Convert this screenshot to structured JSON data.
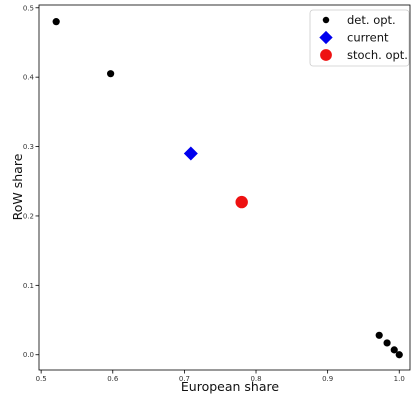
{
  "chart_data": {
    "type": "scatter",
    "xlabel": "European share",
    "ylabel": "RoW share",
    "xlim": [
      0.497,
      1.015
    ],
    "ylim": [
      -0.022,
      0.504
    ],
    "xticks": [
      {
        "value": 0.5,
        "label": "0.5"
      },
      {
        "value": 0.6,
        "label": "0.6"
      },
      {
        "value": 0.7,
        "label": "0.7"
      },
      {
        "value": 0.8,
        "label": "0.8"
      },
      {
        "value": 0.9,
        "label": "0.9"
      },
      {
        "value": 1.0,
        "label": "1.0"
      }
    ],
    "yticks": [
      {
        "value": 0.0,
        "label": "0.0"
      },
      {
        "value": 0.1,
        "label": "0.1"
      },
      {
        "value": 0.2,
        "label": "0.2"
      },
      {
        "value": 0.3,
        "label": "0.3"
      },
      {
        "value": 0.4,
        "label": "0.4"
      },
      {
        "value": 0.5,
        "label": "0.5"
      }
    ],
    "grid": false,
    "legend_position": "top-right",
    "series": [
      {
        "name": "det. opt.",
        "marker": "circle",
        "color": "#000000",
        "points": [
          {
            "x": 0.521,
            "y": 0.48
          },
          {
            "x": 0.597,
            "y": 0.405
          },
          {
            "x": 0.972,
            "y": 0.028
          },
          {
            "x": 0.983,
            "y": 0.017
          },
          {
            "x": 0.993,
            "y": 0.007
          },
          {
            "x": 1.0,
            "y": 0.0
          }
        ]
      },
      {
        "name": "current",
        "marker": "diamond",
        "color": "#0000ee",
        "points": [
          {
            "x": 0.709,
            "y": 0.29
          }
        ]
      },
      {
        "name": "stoch. opt.",
        "marker": "circle-large",
        "color": "#ee1111",
        "points": [
          {
            "x": 0.78,
            "y": 0.22
          }
        ]
      }
    ]
  }
}
